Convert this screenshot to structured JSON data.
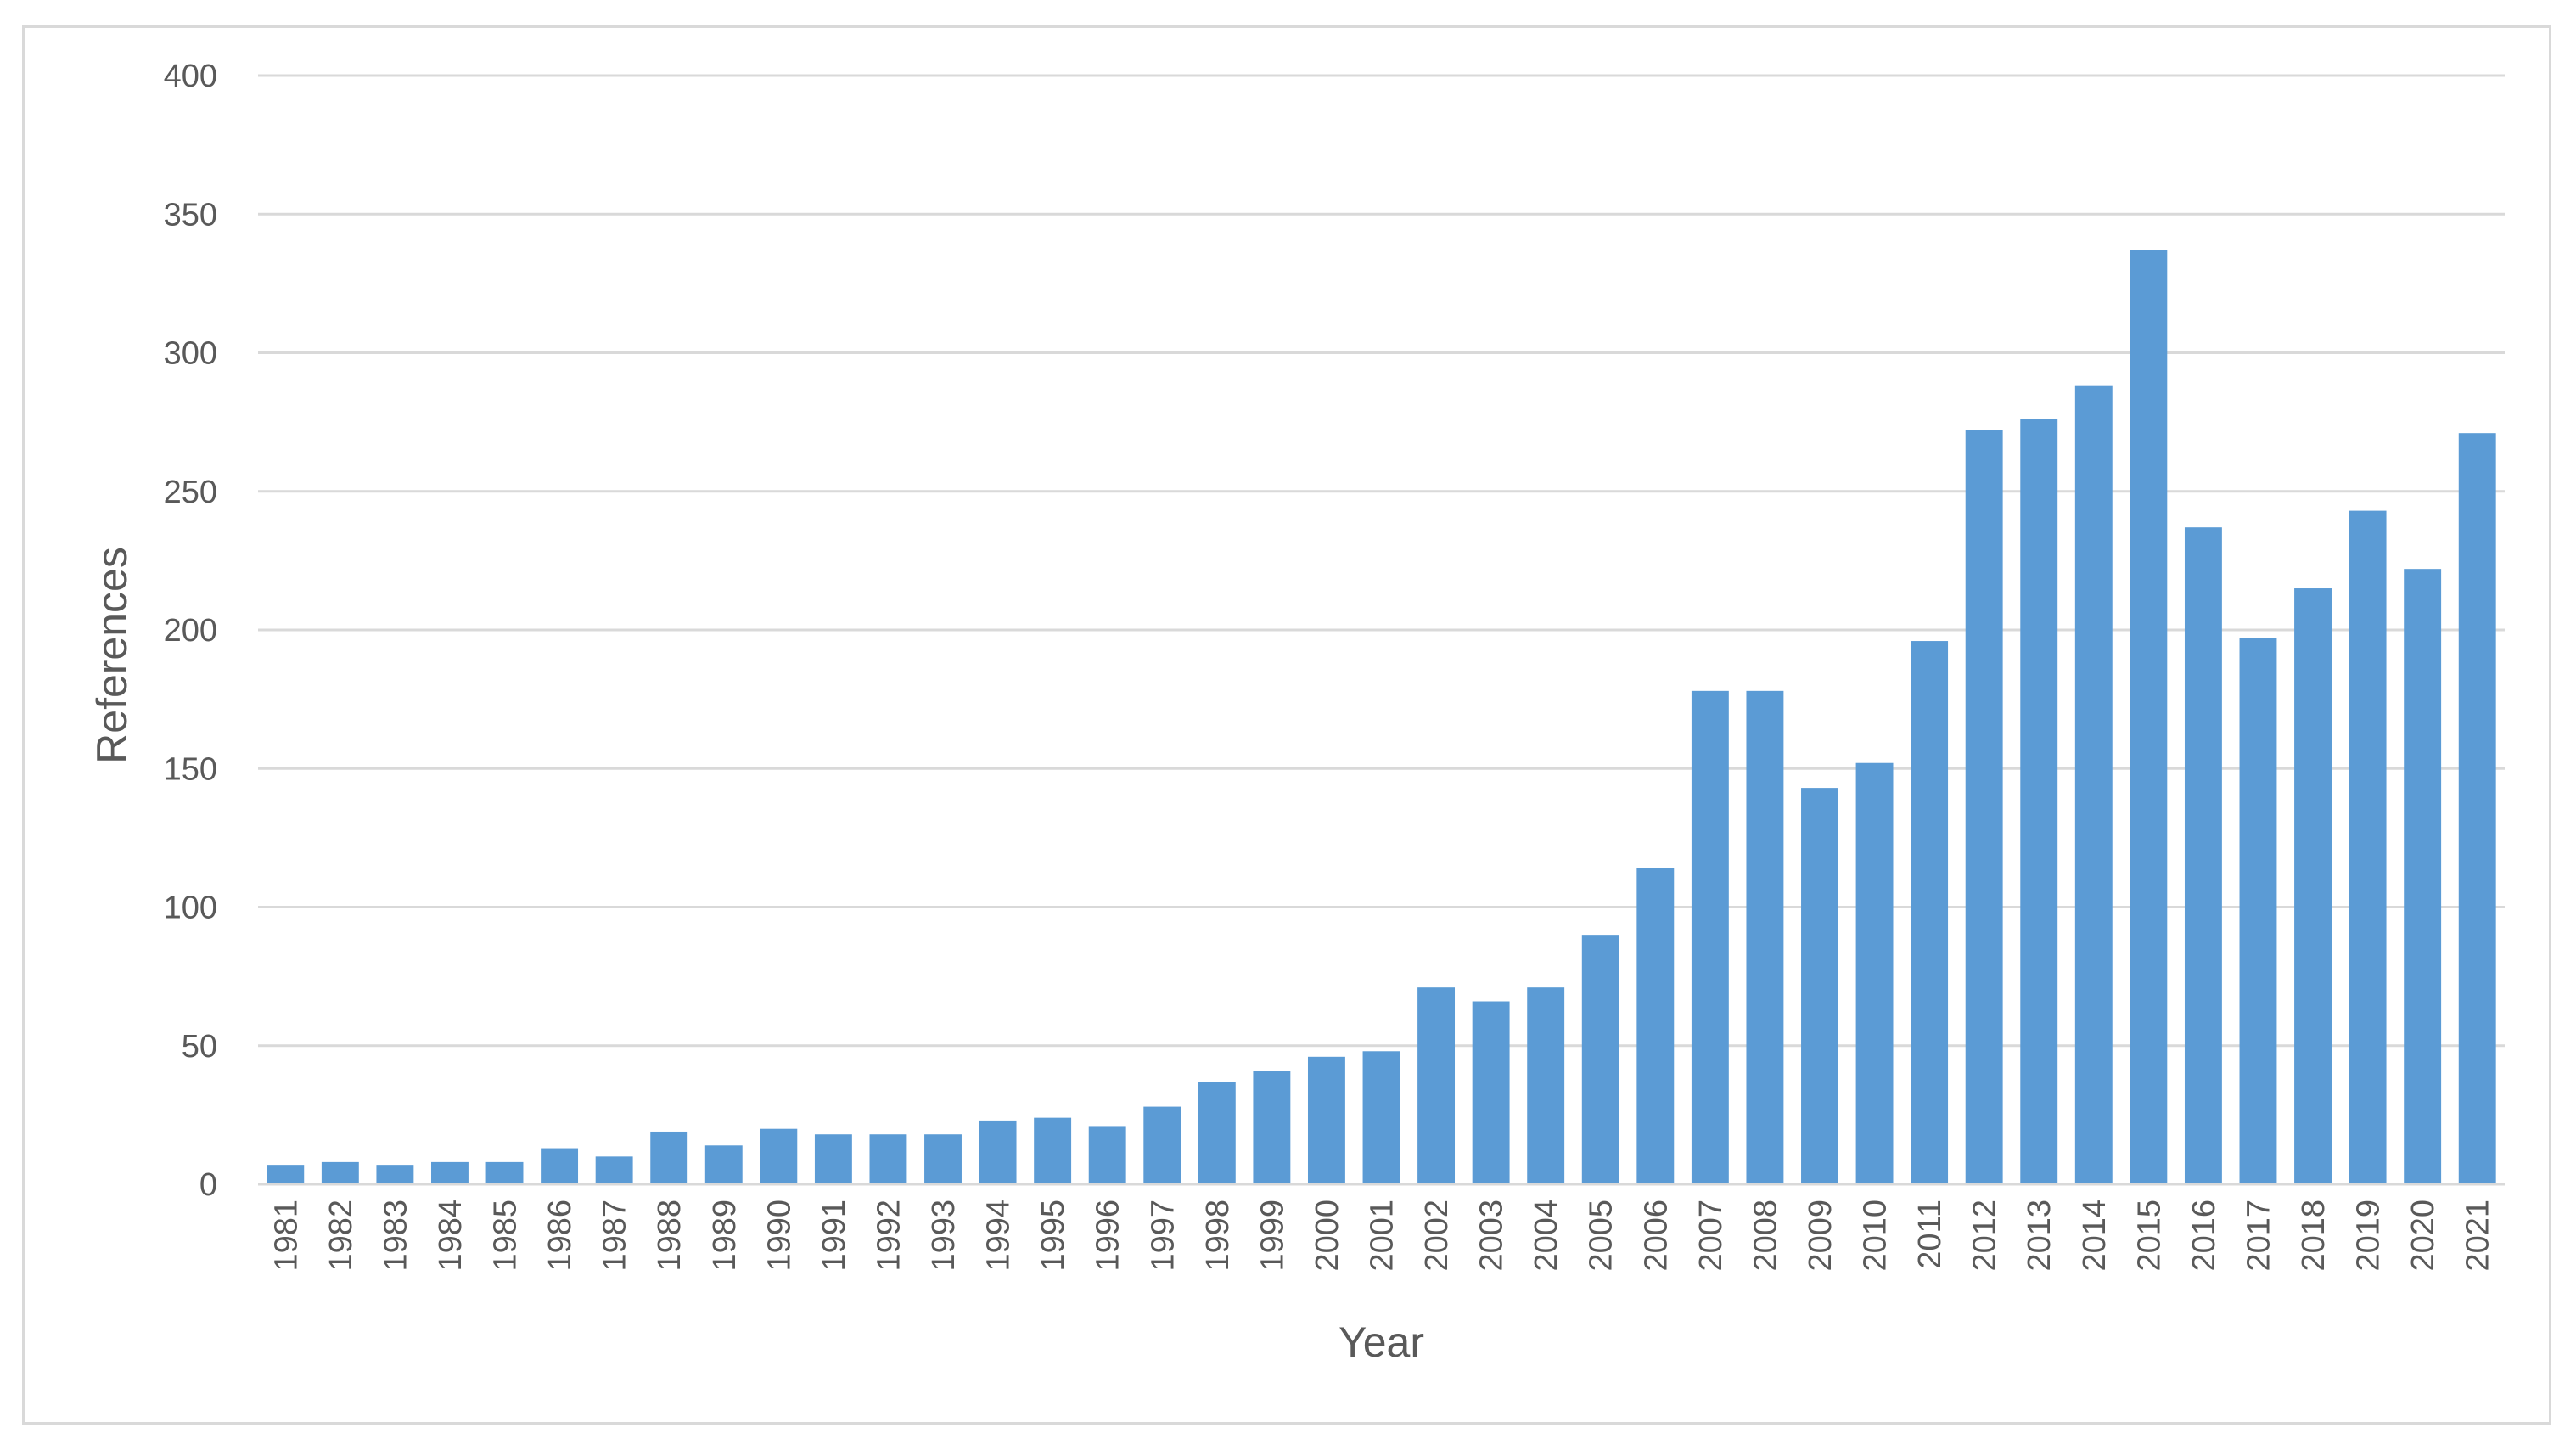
{
  "chart_data": {
    "type": "bar",
    "title": "",
    "xlabel": "Year",
    "ylabel": "References",
    "ylim": [
      0,
      400
    ],
    "yticks": [
      "0",
      "50",
      "100",
      "150",
      "200",
      "250",
      "300",
      "350",
      "400"
    ],
    "grid": true,
    "legend": "none",
    "bar_color": "#5b9bd5",
    "categories": [
      "1981",
      "1982",
      "1983",
      "1984",
      "1985",
      "1986",
      "1987",
      "1988",
      "1989",
      "1990",
      "1991",
      "1992",
      "1993",
      "1994",
      "1995",
      "1996",
      "1997",
      "1998",
      "1999",
      "2000",
      "2001",
      "2002",
      "2003",
      "2004",
      "2005",
      "2006",
      "2007",
      "2008",
      "2009",
      "2010",
      "2011",
      "2012",
      "2013",
      "2014",
      "2015",
      "2016",
      "2017",
      "2018",
      "2019",
      "2020",
      "2021"
    ],
    "values": [
      7,
      8,
      7,
      8,
      8,
      13,
      10,
      19,
      14,
      20,
      18,
      18,
      18,
      23,
      24,
      21,
      28,
      37,
      41,
      46,
      48,
      71,
      66,
      71,
      90,
      114,
      178,
      178,
      143,
      152,
      196,
      272,
      276,
      288,
      337,
      237,
      197,
      215,
      243,
      222,
      271
    ]
  }
}
